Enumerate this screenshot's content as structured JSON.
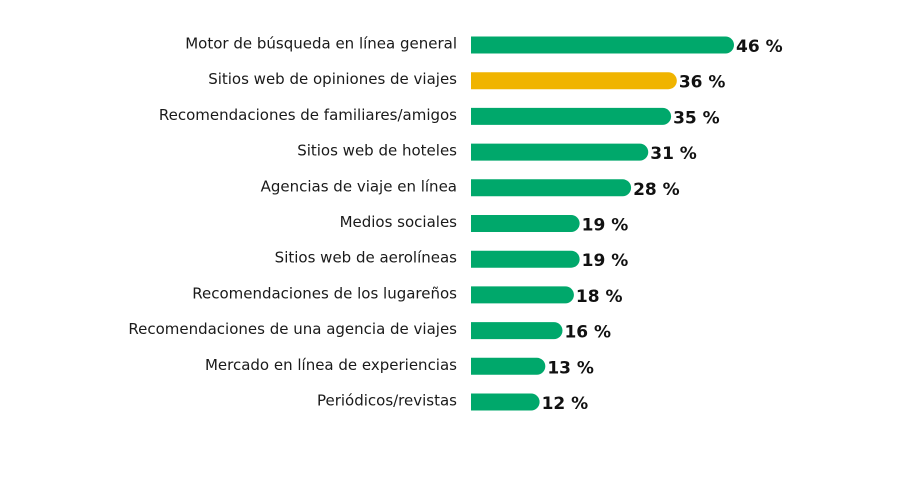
{
  "chart_data": {
    "type": "bar",
    "orientation": "horizontal",
    "categories": [
      "Motor de búsqueda en línea general",
      "Sitios web de opiniones de viajes",
      "Recomendaciones de familiares/amigos",
      "Sitios web de hoteles",
      "Agencias de viaje en línea",
      "Medios sociales",
      "Sitios web de aerolíneas",
      "Recomendaciones de los lugareños",
      "Recomendaciones de una agencia de viajes",
      "Mercado en línea de experiencias",
      "Periódicos/revistas"
    ],
    "values": [
      46,
      36,
      35,
      31,
      28,
      19,
      19,
      18,
      16,
      13,
      12
    ],
    "value_labels": [
      "46 %",
      "36 %",
      "35 %",
      "31 %",
      "28 %",
      "19 %",
      "19 %",
      "18 %",
      "16 %",
      "13 %",
      "12 %"
    ],
    "unit": "%",
    "highlight_index": 1,
    "colors": {
      "default": "#00a86b",
      "highlight": "#f0b400"
    },
    "grid": false,
    "legend": "none"
  }
}
